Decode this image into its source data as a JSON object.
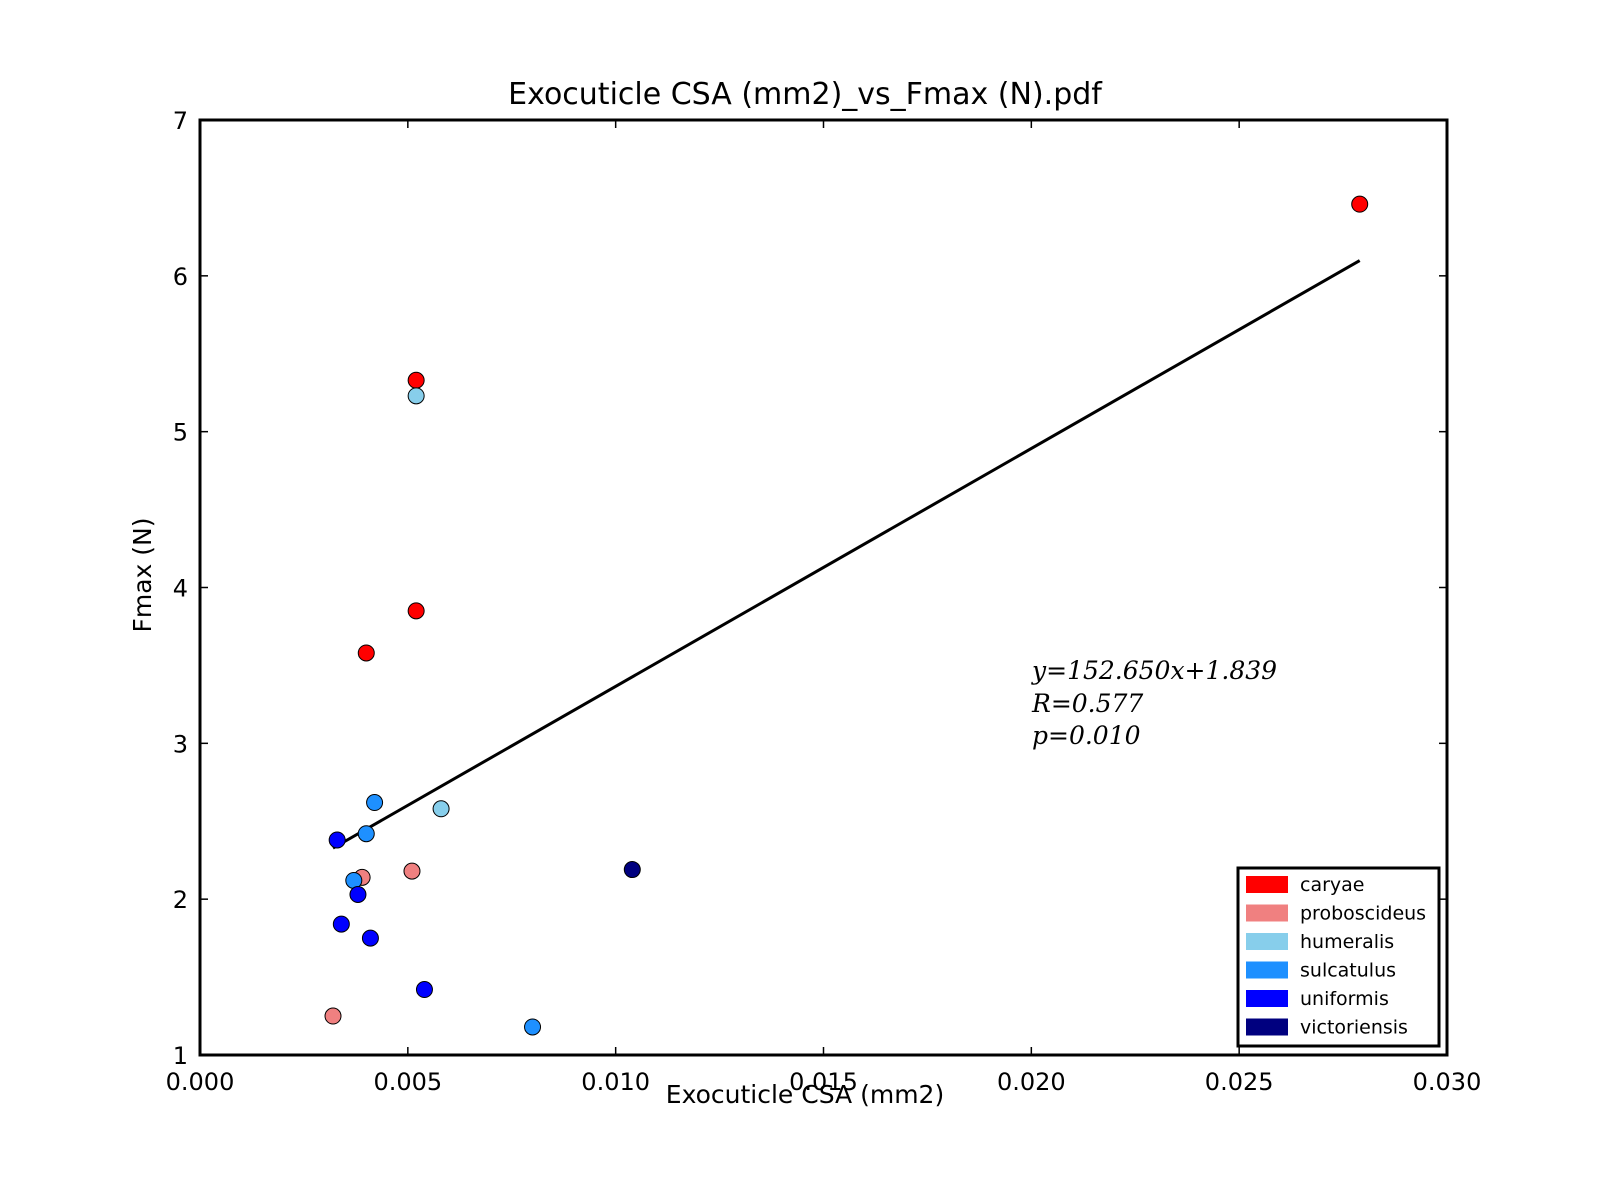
{
  "chart_data": {
    "type": "scatter",
    "title": "Exocuticle CSA (mm2)_vs_Fmax (N).pdf",
    "xlabel": "Exocuticle CSA (mm2)",
    "ylabel": "Fmax (N)",
    "xlim": [
      0.0,
      0.03
    ],
    "ylim": [
      1,
      7
    ],
    "xticks": [
      0.0,
      0.005,
      0.01,
      0.015,
      0.02,
      0.025,
      0.03
    ],
    "xtick_labels": [
      "0.000",
      "0.005",
      "0.010",
      "0.015",
      "0.020",
      "0.025",
      "0.030"
    ],
    "yticks": [
      1,
      2,
      3,
      4,
      5,
      6,
      7
    ],
    "ytick_labels": [
      "1",
      "2",
      "3",
      "4",
      "5",
      "6",
      "7"
    ],
    "grid": false,
    "legend_position": "bottom-right",
    "series": [
      {
        "name": "caryae",
        "color": "#ff0000",
        "points": [
          [
            0.0052,
            5.33
          ],
          [
            0.0052,
            3.85
          ],
          [
            0.004,
            3.58
          ],
          [
            0.0279,
            6.46
          ]
        ]
      },
      {
        "name": "proboscideus",
        "color": "#f08080",
        "points": [
          [
            0.0039,
            2.14
          ],
          [
            0.0051,
            2.18
          ],
          [
            0.0032,
            1.25
          ]
        ]
      },
      {
        "name": "humeralis",
        "color": "#87ceeb",
        "points": [
          [
            0.0052,
            5.23
          ],
          [
            0.0058,
            2.58
          ]
        ]
      },
      {
        "name": "sulcatulus",
        "color": "#1e90ff",
        "points": [
          [
            0.0042,
            2.62
          ],
          [
            0.004,
            2.42
          ],
          [
            0.0037,
            2.12
          ],
          [
            0.008,
            1.18
          ]
        ]
      },
      {
        "name": "uniformis",
        "color": "#0000ff",
        "points": [
          [
            0.0033,
            2.38
          ],
          [
            0.0038,
            2.03
          ],
          [
            0.0034,
            1.84
          ],
          [
            0.0041,
            1.75
          ],
          [
            0.0054,
            1.42
          ]
        ]
      },
      {
        "name": "victoriensis",
        "color": "#00007f",
        "points": [
          [
            0.0104,
            2.19
          ]
        ]
      }
    ],
    "fit_line": {
      "slope": 152.65,
      "intercept": 1.839,
      "x_range": [
        0.0032,
        0.0279
      ],
      "color": "#000000"
    },
    "annotation_lines": [
      "y=152.650x+1.839",
      "R=0.577",
      "p=0.010"
    ]
  }
}
